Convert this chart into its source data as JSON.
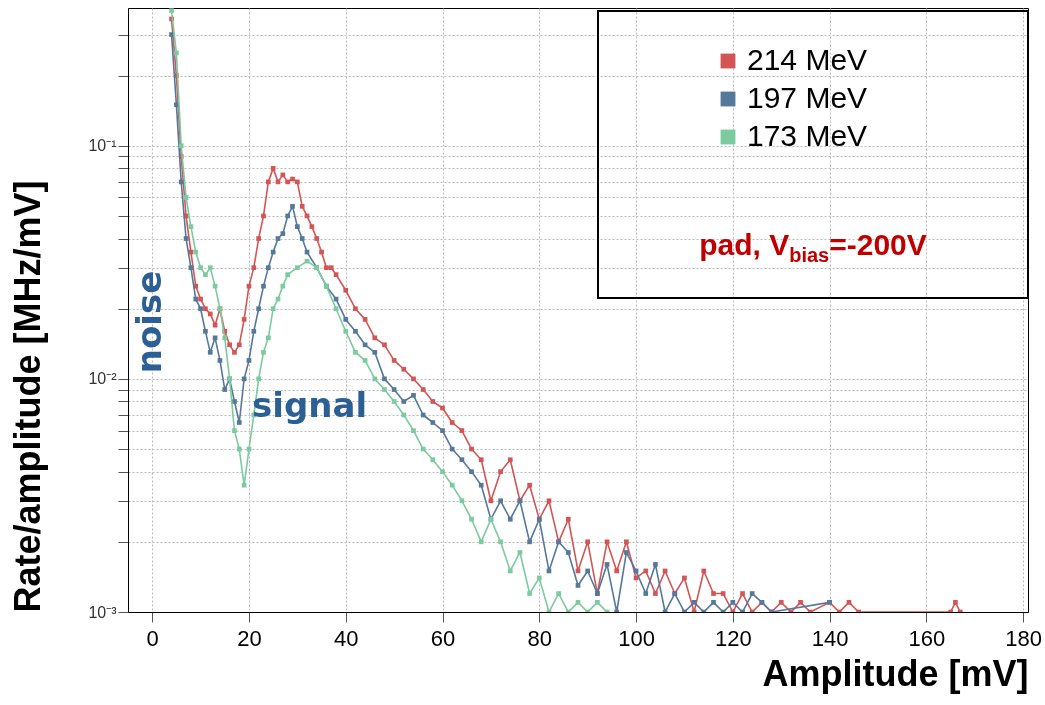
{
  "chart_data": {
    "type": "line",
    "xlabel": "Amplitude [mV]",
    "ylabel": "Rate/amplitude  [MHz/mV]",
    "log": "y",
    "grid": true,
    "legend": "top right",
    "marker": "square",
    "line_style": "solid",
    "xlim": [
      -5,
      181
    ],
    "xticks": [
      0,
      20,
      40,
      60,
      80,
      100,
      120,
      140,
      160,
      180
    ],
    "ylim": [
      0.001,
      0.39
    ],
    "yticks": [
      {
        "value": 0.001,
        "label": "10⁻³"
      },
      {
        "value": 0.002,
        "label": null
      },
      {
        "value": 0.003,
        "label": null
      },
      {
        "value": 0.004,
        "label": null
      },
      {
        "value": 0.005,
        "label": null
      },
      {
        "value": 0.006,
        "label": null
      },
      {
        "value": 0.007,
        "label": null
      },
      {
        "value": 0.008,
        "label": null
      },
      {
        "value": 0.009,
        "label": null
      },
      {
        "value": 0.01,
        "label": "10⁻²"
      },
      {
        "value": 0.02,
        "label": null
      },
      {
        "value": 0.03,
        "label": null
      },
      {
        "value": 0.04,
        "label": null
      },
      {
        "value": 0.05,
        "label": null
      },
      {
        "value": 0.06,
        "label": null
      },
      {
        "value": 0.07,
        "label": null
      },
      {
        "value": 0.08,
        "label": null
      },
      {
        "value": 0.09,
        "label": null
      },
      {
        "value": 0.1,
        "label": "10⁻¹"
      },
      {
        "value": 0.2,
        "label": null
      },
      {
        "value": 0.3,
        "label": null
      }
    ],
    "annotations": [
      "pad, V$_{bias}$=-200V",
      "noise",
      "signal"
    ],
    "series": [
      {
        "name": "214 MeV",
        "color": "#d35555",
        "x": [
          4,
          5,
          6,
          7,
          8,
          9,
          10,
          11,
          12,
          13,
          14,
          15,
          16,
          17,
          18,
          19,
          20,
          21,
          22,
          23,
          24,
          25,
          26,
          27,
          28,
          29,
          30,
          31,
          32,
          33,
          34,
          35,
          36,
          37,
          38,
          40,
          42,
          44,
          46,
          48,
          50,
          52,
          54,
          56,
          58,
          60,
          62,
          64,
          66,
          68,
          70,
          72,
          74,
          76,
          78,
          80,
          82,
          84,
          86,
          88,
          90,
          92,
          94,
          96,
          98,
          100,
          102,
          104,
          106,
          108,
          110,
          112,
          114,
          116,
          118,
          120,
          122,
          124,
          126,
          128,
          130,
          132,
          134,
          136,
          140,
          142,
          144,
          146,
          165,
          166,
          167
        ],
        "values": [
          0.35,
          0.2,
          0.09,
          0.05,
          0.035,
          0.025,
          0.022,
          0.02,
          0.019,
          0.017,
          0.02,
          0.016,
          0.014,
          0.013,
          0.014,
          0.018,
          0.025,
          0.03,
          0.04,
          0.05,
          0.07,
          0.08,
          0.07,
          0.075,
          0.07,
          0.072,
          0.07,
          0.055,
          0.05,
          0.045,
          0.04,
          0.035,
          0.03,
          0.03,
          0.028,
          0.024,
          0.02,
          0.018,
          0.015,
          0.014,
          0.012,
          0.011,
          0.01,
          0.009,
          0.008,
          0.0075,
          0.0065,
          0.006,
          0.005,
          0.0045,
          0.003,
          0.004,
          0.0045,
          0.003,
          0.0035,
          0.0025,
          0.003,
          0.002,
          0.0025,
          0.0015,
          0.002,
          0.0012,
          0.002,
          0.0015,
          0.002,
          0.0014,
          0.0015,
          0.0012,
          0.0015,
          0.0012,
          0.0014,
          0.001,
          0.0015,
          0.0012,
          0.0012,
          0.001,
          0.0012,
          0.001,
          0.0011,
          0.001,
          0.0011,
          0.001,
          0.0011,
          0.001,
          0.0011,
          0.001,
          0.0011,
          0.001,
          0.001,
          0.0011,
          0.001
        ]
      },
      {
        "name": "197 MeV",
        "color": "#56789a",
        "x": [
          4,
          5,
          6,
          7,
          8,
          9,
          10,
          11,
          12,
          13,
          14,
          15,
          16,
          17,
          18,
          19,
          20,
          21,
          22,
          23,
          24,
          25,
          26,
          27,
          28,
          29,
          30,
          31,
          32,
          34,
          36,
          38,
          40,
          42,
          44,
          46,
          48,
          50,
          52,
          54,
          56,
          58,
          60,
          62,
          64,
          66,
          68,
          70,
          72,
          74,
          76,
          78,
          80,
          82,
          84,
          86,
          88,
          90,
          92,
          94,
          96,
          98,
          100,
          102,
          104,
          106,
          108,
          110,
          112,
          114,
          116,
          118,
          120,
          122,
          124,
          126,
          128,
          140
        ],
        "values": [
          0.3,
          0.15,
          0.07,
          0.04,
          0.03,
          0.022,
          0.02,
          0.016,
          0.013,
          0.015,
          0.012,
          0.009,
          0.01,
          0.008,
          0.0065,
          0.01,
          0.012,
          0.016,
          0.02,
          0.025,
          0.03,
          0.035,
          0.04,
          0.042,
          0.05,
          0.055,
          0.045,
          0.04,
          0.035,
          0.03,
          0.025,
          0.022,
          0.018,
          0.016,
          0.014,
          0.013,
          0.01,
          0.009,
          0.008,
          0.0085,
          0.007,
          0.0065,
          0.006,
          0.005,
          0.0045,
          0.004,
          0.0035,
          0.0025,
          0.003,
          0.0025,
          0.003,
          0.002,
          0.0025,
          0.0015,
          0.002,
          0.0018,
          0.0013,
          0.0015,
          0.0012,
          0.0016,
          0.001,
          0.0018,
          0.0015,
          0.0012,
          0.0016,
          0.001,
          0.0012,
          0.001,
          0.0011,
          0.001,
          0.0011,
          0.001,
          0.0011,
          0.001,
          0.0012,
          0.0011,
          0.001,
          0.0011
        ]
      },
      {
        "name": "173 MeV",
        "color": "#7ccaa0",
        "x": [
          4,
          5,
          6,
          7,
          8,
          9,
          10,
          11,
          12,
          13,
          14,
          15,
          16,
          17,
          18,
          19,
          20,
          21,
          22,
          23,
          24,
          25,
          26,
          27,
          28,
          30,
          32,
          34,
          36,
          38,
          40,
          42,
          44,
          46,
          48,
          50,
          52,
          54,
          56,
          58,
          60,
          62,
          64,
          66,
          68,
          70,
          72,
          74,
          76,
          78,
          80,
          82,
          84,
          86,
          88,
          90,
          92,
          94
        ],
        "values": [
          0.38,
          0.25,
          0.1,
          0.06,
          0.045,
          0.035,
          0.03,
          0.028,
          0.03,
          0.025,
          0.02,
          0.015,
          0.01,
          0.006,
          0.005,
          0.0035,
          0.005,
          0.007,
          0.01,
          0.013,
          0.015,
          0.02,
          0.022,
          0.025,
          0.028,
          0.03,
          0.032,
          0.03,
          0.025,
          0.02,
          0.016,
          0.013,
          0.012,
          0.01,
          0.009,
          0.008,
          0.007,
          0.006,
          0.005,
          0.0045,
          0.004,
          0.0035,
          0.003,
          0.0025,
          0.002,
          0.0025,
          0.002,
          0.0015,
          0.0018,
          0.0012,
          0.0014,
          0.001,
          0.0012,
          0.001,
          0.0011,
          0.001,
          0.0011,
          0.001
        ]
      }
    ]
  }
}
